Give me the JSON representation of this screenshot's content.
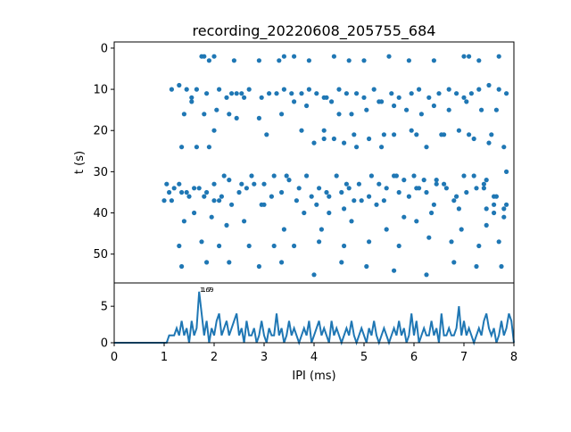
{
  "title": "recording_20220608_205755_684",
  "colors": {
    "series": "#1f77b4",
    "axis": "#000000",
    "background": "#ffffff"
  },
  "chart_data": [
    {
      "type": "scatter",
      "name": "raster",
      "title": "recording_20220608_205755_684",
      "xlabel": "",
      "ylabel": "t (s)",
      "xlim": [
        0,
        8
      ],
      "ylim": [
        57,
        -1.5
      ],
      "y_inverted": true,
      "yticks": [
        0,
        10,
        20,
        30,
        40,
        50
      ],
      "grid": false,
      "x": [
        1.75,
        1.8,
        1.9,
        2.0,
        2.4,
        2.9,
        3.3,
        3.4,
        3.6,
        3.9,
        4.4,
        4.7,
        5.0,
        5.5,
        5.9,
        6.4,
        7.0,
        7.1,
        7.3,
        7.7,
        1.0,
        1.15,
        1.3,
        1.45,
        1.55,
        1.65,
        1.85,
        2.1,
        2.25,
        2.35,
        2.45,
        2.55,
        2.7,
        2.95,
        3.1,
        3.25,
        3.4,
        3.55,
        3.75,
        3.9,
        4.05,
        4.2,
        4.35,
        4.5,
        4.65,
        4.85,
        5.0,
        5.2,
        5.35,
        5.55,
        5.7,
        5.95,
        6.1,
        6.3,
        6.5,
        6.7,
        6.85,
        7.0,
        7.15,
        7.3,
        7.5,
        7.7,
        7.85,
        1.4,
        1.55,
        1.8,
        2.05,
        2.3,
        2.6,
        2.9,
        3.35,
        3.6,
        3.85,
        4.25,
        4.5,
        4.75,
        5.05,
        5.3,
        5.6,
        5.85,
        6.15,
        6.4,
        6.7,
        7.05,
        7.35,
        7.65,
        1.65,
        2.0,
        2.45,
        3.05,
        3.75,
        4.2,
        4.8,
        5.4,
        6.05,
        6.6,
        7.1,
        7.55,
        4.0,
        4.2,
        4.4,
        4.6,
        4.85,
        5.1,
        5.35,
        5.6,
        5.95,
        6.25,
        6.55,
        6.9,
        7.2,
        7.5,
        7.8,
        1.35,
        1.9,
        4.8,
        5.65,
        6.05,
        6.45,
        7.4,
        7.6,
        7.85,
        7.6,
        1.05,
        1.2,
        1.35,
        1.5,
        1.7,
        1.85,
        2.0,
        2.15,
        2.3,
        2.5,
        2.65,
        2.8,
        3.0,
        3.15,
        3.35,
        3.5,
        3.7,
        3.95,
        4.1,
        4.3,
        4.55,
        4.7,
        4.9,
        5.1,
        5.3,
        5.45,
        5.7,
        5.9,
        6.1,
        6.25,
        6.45,
        6.65,
        6.85,
        7.05,
        7.25,
        7.45,
        7.65,
        7.85,
        1.1,
        1.3,
        1.45,
        1.6,
        1.8,
        2.0,
        2.2,
        2.35,
        2.55,
        2.75,
        2.95,
        3.2,
        3.45,
        3.65,
        3.85,
        4.05,
        4.25,
        4.45,
        4.65,
        4.95,
        5.15,
        5.4,
        5.6,
        5.8,
        6.0,
        6.2,
        6.4,
        6.6,
        6.8,
        7.0,
        7.2,
        7.4,
        7.6,
        7.8,
        1.15,
        1.6,
        2.1,
        2.6,
        3.0,
        3.8,
        4.3,
        4.6,
        5.25,
        5.8,
        6.35,
        6.9,
        7.45,
        7.8,
        1.4,
        1.95,
        2.25,
        3.4,
        4.15,
        4.75,
        5.45,
        6.05,
        6.95,
        7.45,
        1.3,
        1.75,
        2.1,
        2.7,
        3.2,
        3.6,
        4.1,
        4.6,
        5.1,
        5.7,
        6.3,
        6.75,
        7.3,
        7.7,
        1.35,
        1.85,
        2.3,
        2.9,
        3.35,
        4.0,
        4.55,
        5.05,
        5.6,
        6.25,
        6.8,
        7.25,
        7.75
      ],
      "y": [
        2,
        2,
        3,
        2,
        3,
        3,
        3,
        2,
        2,
        3,
        2,
        3,
        3,
        2,
        3,
        3,
        2,
        2,
        3,
        2,
        37,
        10,
        9,
        10,
        12,
        10,
        11,
        10,
        12,
        11,
        11,
        11,
        10,
        12,
        11,
        11,
        10,
        11,
        11,
        10,
        11,
        12,
        13,
        10,
        11,
        11,
        12,
        10,
        13,
        11,
        12,
        11,
        10,
        12,
        11,
        10,
        11,
        12,
        11,
        10,
        9,
        10,
        11,
        16,
        13,
        16,
        15,
        16,
        12,
        17,
        16,
        13,
        14,
        12,
        16,
        16,
        15,
        13,
        14,
        15,
        16,
        14,
        15,
        13,
        15,
        15,
        24,
        20,
        17,
        21,
        20,
        20,
        21,
        21,
        21,
        21,
        21,
        21,
        23,
        22,
        22,
        23,
        24,
        22,
        24,
        21,
        20,
        24,
        21,
        20,
        22,
        23,
        24,
        24,
        24,
        37,
        31,
        34,
        32,
        34,
        38,
        30,
        36,
        33,
        34,
        35,
        36,
        34,
        35,
        33,
        36,
        32,
        35,
        34,
        33,
        33,
        36,
        35,
        32,
        34,
        36,
        34,
        36,
        35,
        34,
        33,
        36,
        33,
        34,
        35,
        36,
        34,
        35,
        33,
        34,
        36,
        35,
        34,
        32,
        36,
        38,
        35,
        33,
        35,
        34,
        36,
        37,
        31,
        38,
        33,
        31,
        38,
        31,
        31,
        37,
        31,
        38,
        35,
        31,
        33,
        37,
        31,
        37,
        31,
        32,
        31,
        32,
        38,
        33,
        37,
        31,
        31,
        33,
        40,
        39,
        37,
        40,
        37,
        42,
        38,
        40,
        40,
        39,
        38,
        41,
        40,
        39,
        39,
        41,
        42,
        41,
        43,
        44,
        44,
        42,
        44,
        42,
        44,
        43,
        48,
        47,
        48,
        48,
        48,
        48,
        47,
        48,
        47,
        48,
        46,
        47,
        48,
        47,
        53,
        52,
        52,
        53,
        52,
        55,
        52,
        53,
        54,
        55,
        52,
        53,
        53
      ]
    },
    {
      "type": "line",
      "name": "ipi-histogram",
      "xlabel": "IPI (ms)",
      "ylabel": "",
      "xlim": [
        0,
        8
      ],
      "ylim": [
        0,
        8.2
      ],
      "xticks": [
        0,
        1,
        2,
        3,
        4,
        5,
        6,
        7,
        8
      ],
      "yticks": [
        0,
        5
      ],
      "grid": false,
      "annotations": [
        "1.69",
        "1.7"
      ],
      "x": [
        0,
        0.05,
        0.1,
        0.15,
        0.2,
        0.25,
        0.3,
        0.35,
        0.4,
        0.45,
        0.5,
        0.55,
        0.6,
        0.65,
        0.7,
        0.75,
        0.8,
        0.85,
        0.9,
        0.95,
        1.0,
        1.05,
        1.1,
        1.15,
        1.2,
        1.25,
        1.3,
        1.35,
        1.4,
        1.45,
        1.5,
        1.55,
        1.6,
        1.65,
        1.7,
        1.75,
        1.8,
        1.85,
        1.9,
        1.95,
        2.0,
        2.05,
        2.1,
        2.15,
        2.2,
        2.25,
        2.3,
        2.35,
        2.4,
        2.45,
        2.5,
        2.55,
        2.6,
        2.65,
        2.7,
        2.75,
        2.8,
        2.85,
        2.9,
        2.95,
        3.0,
        3.05,
        3.1,
        3.15,
        3.2,
        3.25,
        3.3,
        3.35,
        3.4,
        3.45,
        3.5,
        3.55,
        3.6,
        3.65,
        3.7,
        3.75,
        3.8,
        3.85,
        3.9,
        3.95,
        4.0,
        4.05,
        4.1,
        4.15,
        4.2,
        4.25,
        4.3,
        4.35,
        4.4,
        4.45,
        4.5,
        4.55,
        4.6,
        4.65,
        4.7,
        4.75,
        4.8,
        4.85,
        4.9,
        4.95,
        5.0,
        5.05,
        5.1,
        5.15,
        5.2,
        5.25,
        5.3,
        5.35,
        5.4,
        5.45,
        5.5,
        5.55,
        5.6,
        5.65,
        5.7,
        5.75,
        5.8,
        5.85,
        5.9,
        5.95,
        6.0,
        6.05,
        6.1,
        6.15,
        6.2,
        6.25,
        6.3,
        6.35,
        6.4,
        6.45,
        6.5,
        6.55,
        6.6,
        6.65,
        6.7,
        6.75,
        6.8,
        6.85,
        6.9,
        6.95,
        7.0,
        7.05,
        7.1,
        7.15,
        7.2,
        7.25,
        7.3,
        7.35,
        7.4,
        7.45,
        7.5,
        7.55,
        7.6,
        7.65,
        7.7,
        7.75,
        7.8,
        7.85,
        7.9,
        7.95,
        8.0
      ],
      "y": [
        0,
        0,
        0,
        0,
        0,
        0,
        0,
        0,
        0,
        0,
        0,
        0,
        0,
        0,
        0,
        0,
        0,
        0,
        0,
        0,
        0,
        0,
        1,
        1,
        1,
        2,
        1,
        3,
        1,
        2,
        0,
        3,
        1,
        2,
        7,
        4,
        1,
        3,
        0,
        2,
        1,
        3,
        4,
        1,
        2,
        3,
        1,
        2,
        3,
        4,
        1,
        2,
        0,
        3,
        1,
        1,
        2,
        0,
        1,
        3,
        1,
        0,
        2,
        1,
        1,
        4,
        1,
        2,
        0,
        1,
        3,
        1,
        2,
        1,
        0,
        1,
        2,
        1,
        3,
        0,
        1,
        2,
        3,
        1,
        2,
        1,
        0,
        3,
        1,
        2,
        1,
        0,
        1,
        2,
        1,
        3,
        1,
        0,
        1,
        2,
        1,
        0,
        2,
        1,
        3,
        1,
        0,
        1,
        2,
        1,
        0,
        1,
        2,
        1,
        3,
        1,
        2,
        0,
        1,
        4,
        1,
        3,
        0,
        1,
        2,
        1,
        1,
        3,
        1,
        2,
        0,
        4,
        1,
        1,
        2,
        1,
        1,
        2,
        5,
        1,
        3,
        1,
        2,
        1,
        0,
        1,
        2,
        1,
        3,
        4,
        2,
        1,
        2,
        0,
        1,
        3,
        1,
        2,
        4,
        3,
        0
      ]
    }
  ]
}
